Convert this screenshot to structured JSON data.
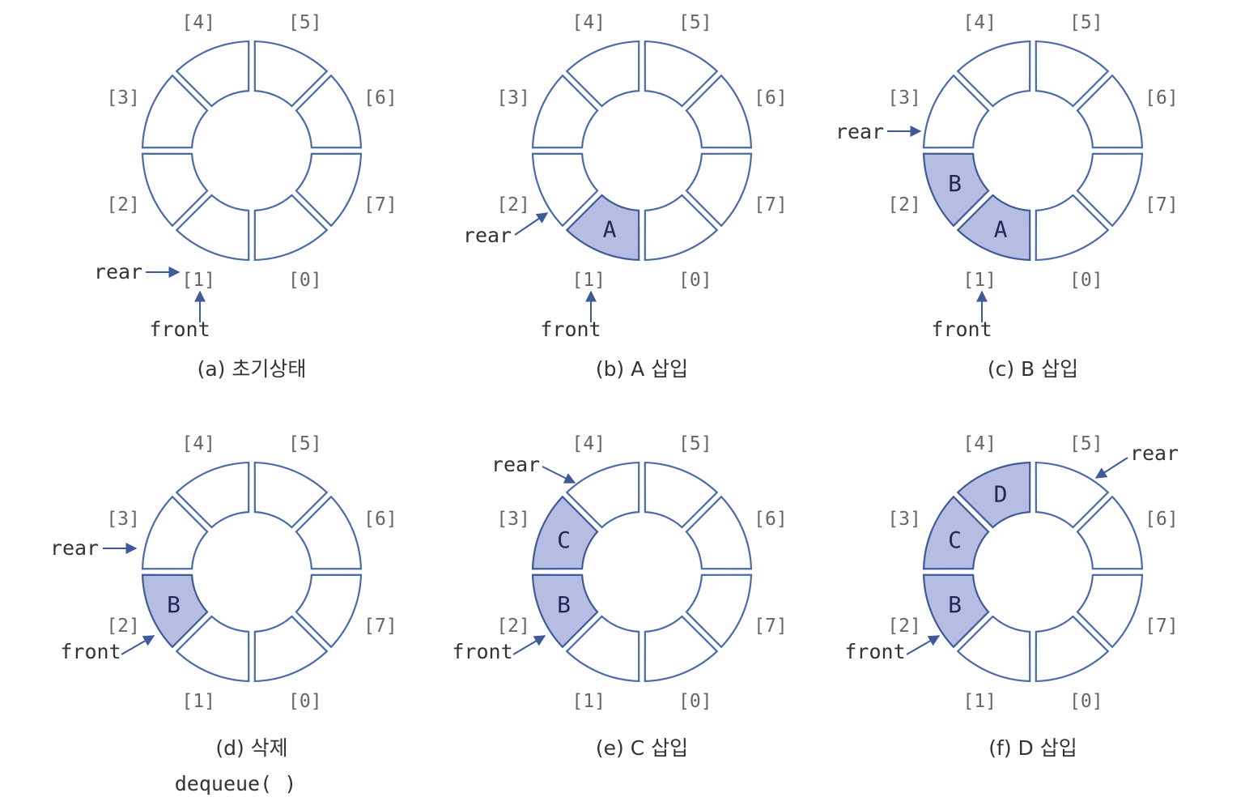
{
  "cell_labels": [
    "[0]",
    "[1]",
    "[2]",
    "[3]",
    "[4]",
    "[5]",
    "[6]",
    "[7]"
  ],
  "pointer_labels": {
    "front": "front",
    "rear": "rear"
  },
  "queues": [
    {
      "caption": "(a) 초기상태",
      "contents": [
        "",
        "",
        "",
        "",
        "",
        "",
        "",
        ""
      ],
      "front": 0,
      "rear": 0
    },
    {
      "caption": "(b) A 삽입",
      "contents": [
        "",
        "A",
        "",
        "",
        "",
        "",
        "",
        ""
      ],
      "front": 0,
      "rear": 1
    },
    {
      "caption": "(c) B 삽입",
      "contents": [
        "",
        "A",
        "B",
        "",
        "",
        "",
        "",
        ""
      ],
      "front": 0,
      "rear": 2
    },
    {
      "caption": "(d) 삭제",
      "note": "dequeue( )",
      "contents": [
        "",
        "",
        "B",
        "",
        "",
        "",
        "",
        ""
      ],
      "front": 1,
      "rear": 2
    },
    {
      "caption": "(e) C 삽입",
      "contents": [
        "",
        "",
        "B",
        "C",
        "",
        "",
        "",
        ""
      ],
      "front": 1,
      "rear": 3
    },
    {
      "caption": "(f) D 삽입",
      "contents": [
        "",
        "",
        "B",
        "C",
        "D",
        "",
        "",
        ""
      ],
      "front": 1,
      "rear": 4
    }
  ],
  "colors": {
    "outline": "#4a6aa8",
    "filled": "#b6bde3",
    "arrow": "#3e5a98"
  }
}
